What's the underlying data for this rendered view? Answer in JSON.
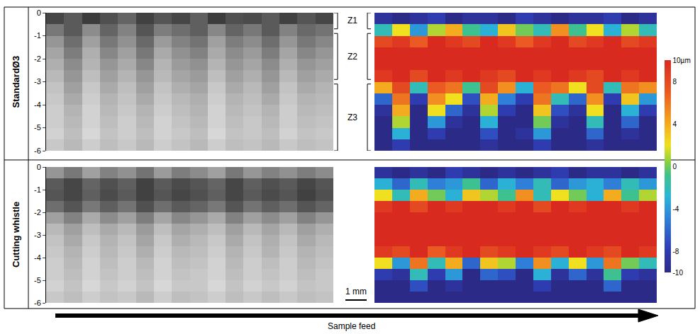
{
  "chart_data": {
    "type": "heatmap",
    "tick_labels": "y",
    "ylim": [
      -6,
      0
    ],
    "yticks": [
      0,
      -1,
      -2,
      -3,
      -4,
      -5,
      -6
    ],
    "depth": [
      -0.25,
      -0.75,
      -1.25,
      -1.75,
      -2.25,
      -2.75,
      -3.25,
      -3.75,
      -4.25,
      -4.75,
      -5.25,
      -5.75
    ],
    "gray_range": [
      0,
      255
    ],
    "colorbar": {
      "range": [
        -10,
        10
      ],
      "ticks": [
        {
          "value": 10,
          "label": "10µm"
        },
        8,
        4,
        0,
        -4,
        -8,
        -10
      ]
    },
    "scale_bar": "1 mm",
    "arrow_label": "Sample feed",
    "rows": [
      {
        "label": "StandardØ3",
        "zones": [
          {
            "label": "Z1",
            "range": [
              0,
              -0.7
            ]
          },
          {
            "label": "Z2",
            "range": [
              -0.9,
              -2.9
            ]
          },
          {
            "label": "Z3",
            "range": [
              -3.1,
              -6
            ]
          }
        ],
        "photo": [
          [
            70,
            90,
            60,
            80,
            100,
            65,
            85,
            70,
            95,
            60,
            80,
            75,
            90,
            65,
            85,
            70
          ],
          [
            120,
            90,
            140,
            100,
            130,
            85,
            125,
            110,
            95,
            135,
            100,
            120,
            90,
            130,
            105,
            115
          ],
          [
            150,
            110,
            160,
            120,
            145,
            105,
            155,
            130,
            115,
            160,
            125,
            140,
            110,
            150,
            120,
            135
          ],
          [
            165,
            125,
            175,
            135,
            160,
            120,
            170,
            145,
            130,
            170,
            140,
            155,
            125,
            165,
            135,
            150
          ],
          [
            175,
            140,
            180,
            150,
            170,
            135,
            180,
            155,
            145,
            180,
            150,
            165,
            140,
            175,
            150,
            160
          ],
          [
            185,
            150,
            190,
            160,
            180,
            150,
            185,
            165,
            155,
            190,
            160,
            175,
            150,
            185,
            160,
            170
          ],
          [
            195,
            160,
            200,
            170,
            190,
            160,
            195,
            175,
            165,
            200,
            170,
            185,
            160,
            195,
            170,
            180
          ],
          [
            200,
            170,
            205,
            180,
            195,
            170,
            200,
            185,
            175,
            205,
            180,
            190,
            170,
            200,
            180,
            185
          ],
          [
            205,
            180,
            210,
            185,
            200,
            180,
            205,
            190,
            180,
            210,
            185,
            195,
            180,
            205,
            185,
            190
          ],
          [
            205,
            185,
            210,
            190,
            205,
            185,
            210,
            195,
            185,
            210,
            190,
            200,
            185,
            205,
            190,
            195
          ],
          [
            210,
            190,
            215,
            195,
            205,
            190,
            210,
            200,
            190,
            215,
            195,
            200,
            190,
            210,
            195,
            200
          ],
          [
            200,
            185,
            205,
            190,
            200,
            185,
            205,
            195,
            185,
            205,
            190,
            195,
            185,
            200,
            190,
            195
          ]
        ],
        "height_map": [
          [
            -9,
            -10,
            -9,
            -8,
            -10,
            -9,
            -9,
            -10,
            -8,
            -9,
            -10,
            -9,
            -9,
            -8,
            -10,
            -9
          ],
          [
            -2,
            2,
            -4,
            1,
            4,
            -1,
            -3,
            3,
            0,
            -2,
            5,
            -1,
            2,
            -3,
            1,
            -2
          ],
          [
            8,
            9,
            7,
            10,
            9,
            8,
            10,
            9,
            7,
            9,
            10,
            8,
            9,
            10,
            8,
            9
          ],
          [
            10,
            10,
            10,
            10,
            10,
            10,
            10,
            10,
            10,
            10,
            10,
            10,
            10,
            10,
            10,
            10
          ],
          [
            10,
            10,
            10,
            10,
            10,
            10,
            10,
            10,
            10,
            10,
            10,
            10,
            10,
            10,
            10,
            10
          ],
          [
            9,
            10,
            8,
            10,
            9,
            10,
            9,
            8,
            10,
            9,
            10,
            9,
            8,
            10,
            9,
            10
          ],
          [
            4,
            8,
            -2,
            7,
            6,
            -1,
            8,
            5,
            -3,
            7,
            6,
            2,
            8,
            -2,
            6,
            5
          ],
          [
            -6,
            6,
            -8,
            5,
            2,
            -7,
            4,
            -5,
            -8,
            6,
            -2,
            -6,
            5,
            -8,
            3,
            -4
          ],
          [
            -9,
            4,
            -10,
            2,
            -6,
            -9,
            1,
            -8,
            -10,
            3,
            -7,
            -9,
            2,
            -10,
            -3,
            -8
          ],
          [
            -10,
            1,
            -10,
            -4,
            -9,
            -10,
            -3,
            -10,
            -10,
            0,
            -9,
            -10,
            -2,
            -10,
            -6,
            -10
          ],
          [
            -10,
            -3,
            -10,
            -8,
            -10,
            -10,
            -7,
            -10,
            -9,
            -4,
            -10,
            -10,
            -6,
            -10,
            -9,
            -10
          ],
          [
            -10,
            -8,
            -10,
            -10,
            -10,
            -10,
            -9,
            -10,
            -10,
            -8,
            -10,
            -10,
            -9,
            -10,
            -10,
            -10
          ]
        ]
      },
      {
        "label": "Cutting whistle",
        "photo": [
          [
            150,
            120,
            160,
            130,
            145,
            115,
            155,
            125,
            140,
            160,
            120,
            150,
            130,
            145,
            125,
            140
          ],
          [
            90,
            70,
            100,
            80,
            95,
            65,
            90,
            75,
            85,
            100,
            70,
            95,
            80,
            90,
            70,
            85
          ],
          [
            85,
            70,
            95,
            75,
            90,
            65,
            85,
            70,
            80,
            95,
            70,
            90,
            75,
            85,
            65,
            80
          ],
          [
            110,
            85,
            120,
            95,
            115,
            80,
            110,
            90,
            100,
            120,
            85,
            115,
            95,
            110,
            85,
            100
          ],
          [
            160,
            130,
            170,
            140,
            160,
            125,
            165,
            135,
            150,
            170,
            130,
            160,
            140,
            160,
            130,
            150
          ],
          [
            185,
            160,
            190,
            170,
            185,
            155,
            190,
            165,
            175,
            190,
            160,
            185,
            165,
            185,
            160,
            175
          ],
          [
            195,
            170,
            200,
            180,
            195,
            165,
            200,
            175,
            185,
            200,
            170,
            195,
            175,
            195,
            170,
            185
          ],
          [
            200,
            180,
            205,
            185,
            200,
            175,
            205,
            185,
            190,
            205,
            180,
            200,
            180,
            200,
            180,
            190
          ],
          [
            205,
            185,
            210,
            190,
            205,
            185,
            210,
            190,
            195,
            210,
            185,
            205,
            190,
            205,
            185,
            195
          ],
          [
            205,
            190,
            210,
            195,
            205,
            190,
            210,
            195,
            200,
            210,
            190,
            205,
            195,
            205,
            190,
            200
          ],
          [
            210,
            195,
            215,
            200,
            210,
            195,
            215,
            200,
            200,
            215,
            195,
            210,
            200,
            210,
            195,
            200
          ],
          [
            200,
            190,
            205,
            195,
            200,
            185,
            205,
            190,
            195,
            205,
            190,
            200,
            190,
            200,
            190,
            195
          ]
        ],
        "height_map": [
          [
            -9,
            -10,
            -9,
            -10,
            -8,
            -9,
            -10,
            -9,
            -10,
            -9,
            -8,
            -10,
            -9,
            -9,
            -10,
            -9
          ],
          [
            -3,
            -6,
            -2,
            -5,
            -4,
            -1,
            -6,
            -3,
            -5,
            -2,
            -6,
            -4,
            -3,
            -5,
            -2,
            -4
          ],
          [
            2,
            -2,
            4,
            0,
            -3,
            3,
            1,
            -1,
            5,
            -2,
            2,
            0,
            -3,
            4,
            -1,
            1
          ],
          [
            9,
            10,
            8,
            10,
            9,
            10,
            10,
            9,
            10,
            8,
            10,
            9,
            10,
            10,
            9,
            10
          ],
          [
            10,
            10,
            10,
            10,
            10,
            10,
            10,
            10,
            10,
            10,
            10,
            10,
            10,
            10,
            10,
            10
          ],
          [
            10,
            10,
            10,
            10,
            10,
            10,
            10,
            10,
            10,
            10,
            10,
            10,
            10,
            10,
            10,
            10
          ],
          [
            10,
            10,
            10,
            10,
            10,
            10,
            10,
            10,
            10,
            10,
            10,
            10,
            10,
            10,
            10,
            10
          ],
          [
            9,
            8,
            10,
            7,
            9,
            10,
            8,
            9,
            10,
            9,
            8,
            10,
            9,
            8,
            10,
            9
          ],
          [
            2,
            -4,
            6,
            -2,
            4,
            -6,
            3,
            1,
            -5,
            5,
            -3,
            2,
            -4,
            6,
            0,
            -2
          ],
          [
            -8,
            -9,
            -2,
            -8,
            -4,
            -10,
            -6,
            -7,
            -10,
            -3,
            -9,
            -6,
            -9,
            -1,
            -8,
            -9
          ],
          [
            -10,
            -10,
            -7,
            -10,
            -9,
            -10,
            -10,
            -10,
            -10,
            -8,
            -10,
            -10,
            -10,
            -6,
            -10,
            -10
          ],
          [
            -10,
            -10,
            -10,
            -10,
            -10,
            -10,
            -10,
            -10,
            -10,
            -10,
            -10,
            -10,
            -10,
            -10,
            -10,
            -10
          ]
        ]
      }
    ]
  }
}
